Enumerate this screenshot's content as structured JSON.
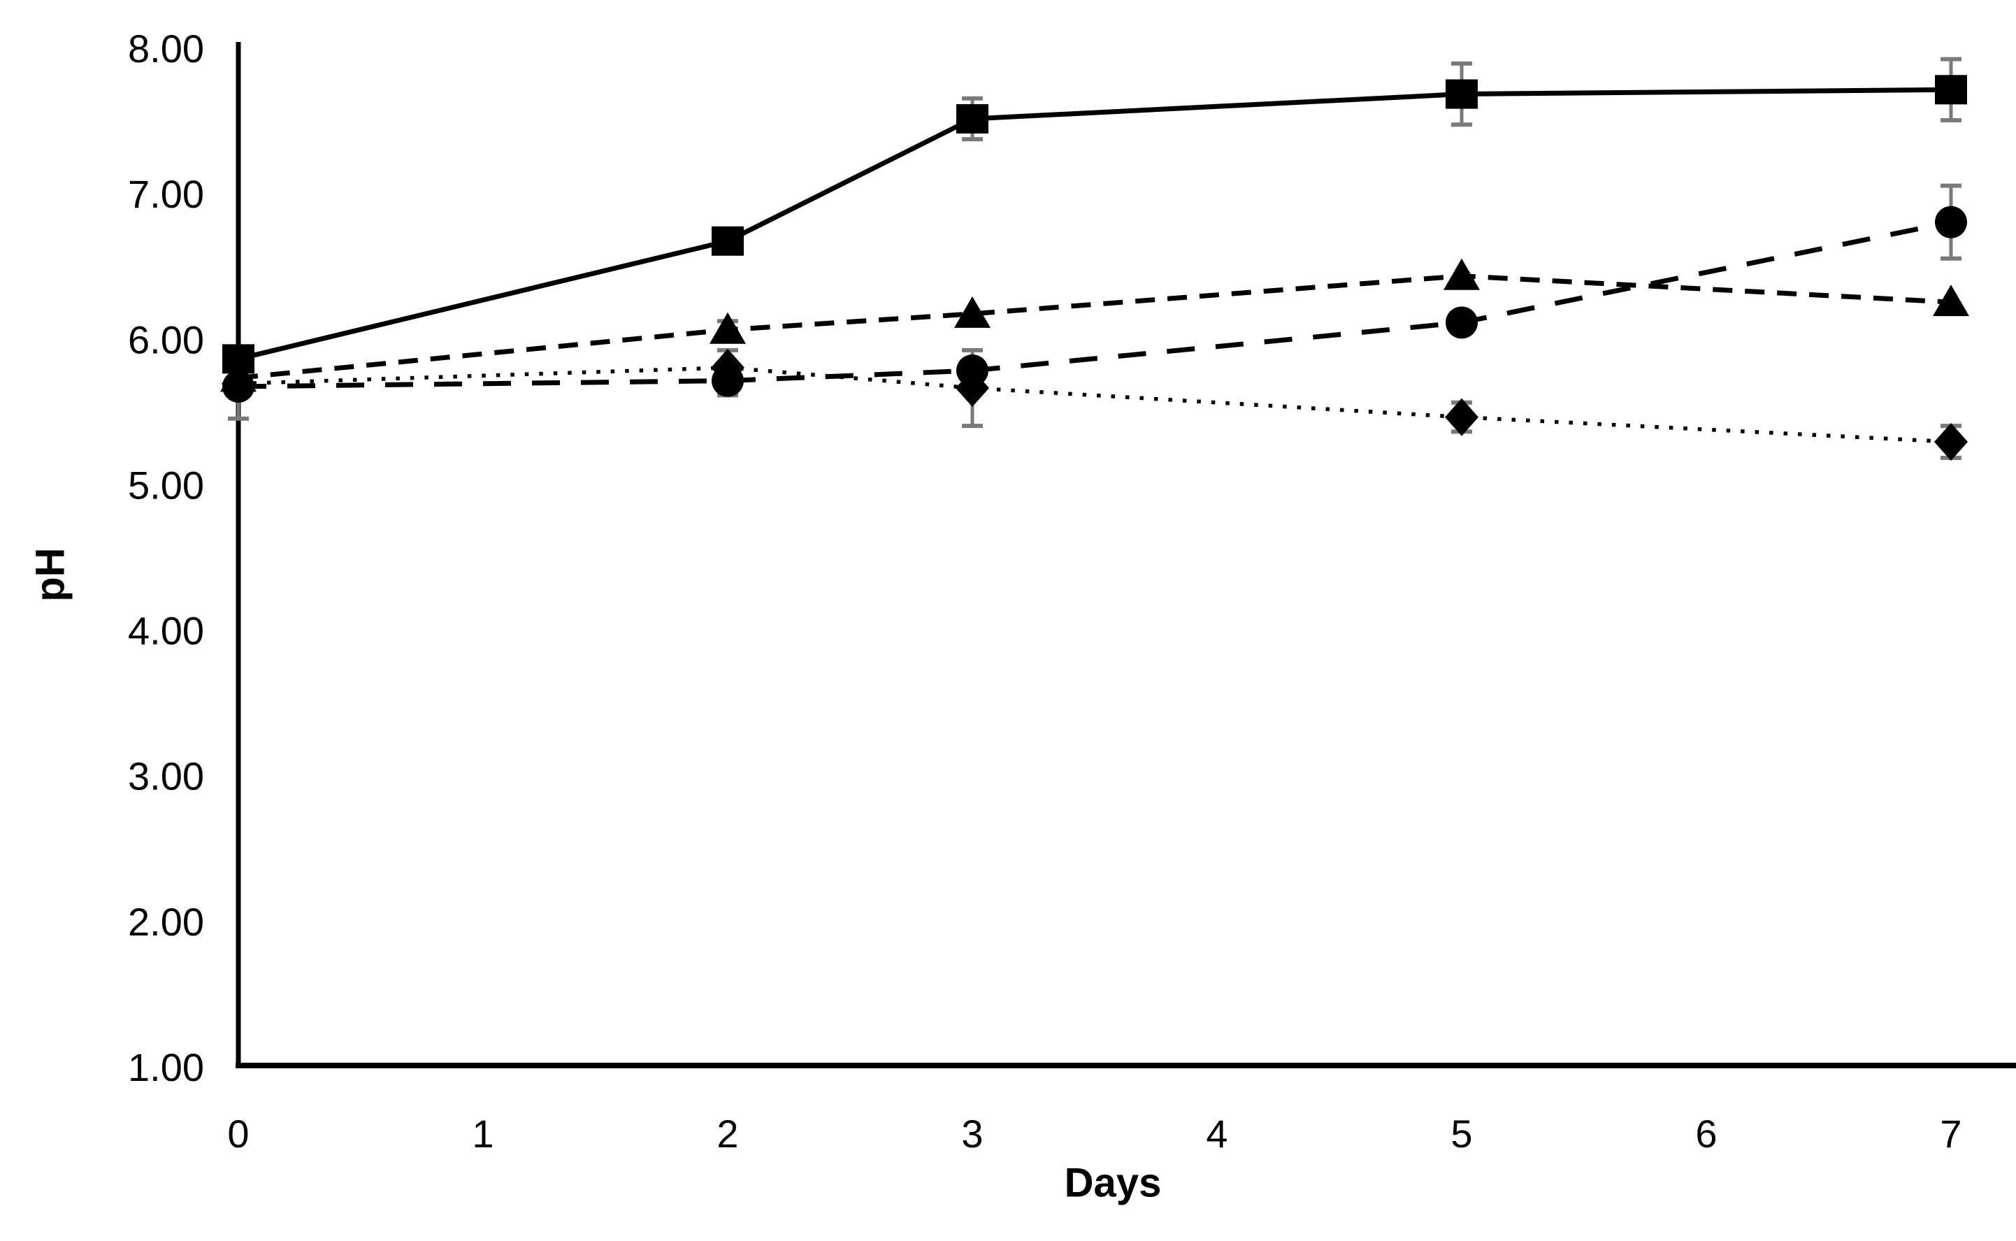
{
  "page": {
    "background": "#ffffff"
  },
  "chart_data": {
    "type": "line",
    "title": "",
    "xlabel": "Days",
    "ylabel": "pH",
    "x_days": [
      0,
      2,
      3,
      5,
      7
    ],
    "x_tick_labels": [
      "0",
      "1",
      "2",
      "3",
      "4",
      "5",
      "6",
      "7"
    ],
    "x_tick_values": [
      0,
      1,
      2,
      3,
      4,
      5,
      6,
      7
    ],
    "y_tick_labels": [
      "8.00",
      "7.00",
      "6.00",
      "5.00",
      "4.00",
      "3.00",
      "2.00",
      "1.00"
    ],
    "y_tick_values": [
      8,
      7,
      6,
      5,
      4,
      3,
      2,
      1
    ],
    "ylim": [
      1.0,
      8.0
    ],
    "xlim": [
      0,
      7.27
    ],
    "grid": false,
    "legend": "none",
    "colors": {
      "series": "#000000",
      "error_bars": "#7a7a7a",
      "axis": "#000000",
      "text": "#000000"
    },
    "series": [
      {
        "name": "filled-square-solid-line",
        "marker": "square",
        "line_style": "solid",
        "values": [
          5.87,
          6.68,
          7.52,
          7.69,
          7.72
        ],
        "error": [
          0,
          0,
          0.14,
          0.21,
          0.21
        ]
      },
      {
        "name": "filled-triangle-dashed-line",
        "marker": "triangle",
        "line_style": "dashed",
        "values": [
          5.74,
          6.07,
          6.18,
          6.44,
          6.26
        ],
        "error": [
          0,
          0.06,
          0,
          0,
          0
        ]
      },
      {
        "name": "filled-circle-long-dash-line",
        "marker": "circle",
        "line_style": "long-dash",
        "values": [
          5.68,
          5.72,
          5.79,
          6.12,
          6.81
        ],
        "error": [
          0,
          0.1,
          0,
          0.06,
          0.25
        ]
      },
      {
        "name": "filled-diamond-dotted-line",
        "marker": "diamond",
        "line_style": "dotted",
        "values": [
          5.7,
          5.81,
          5.67,
          5.47,
          5.3
        ],
        "error": [
          0.24,
          0.12,
          0.26,
          0.1,
          0.11
        ]
      }
    ]
  }
}
